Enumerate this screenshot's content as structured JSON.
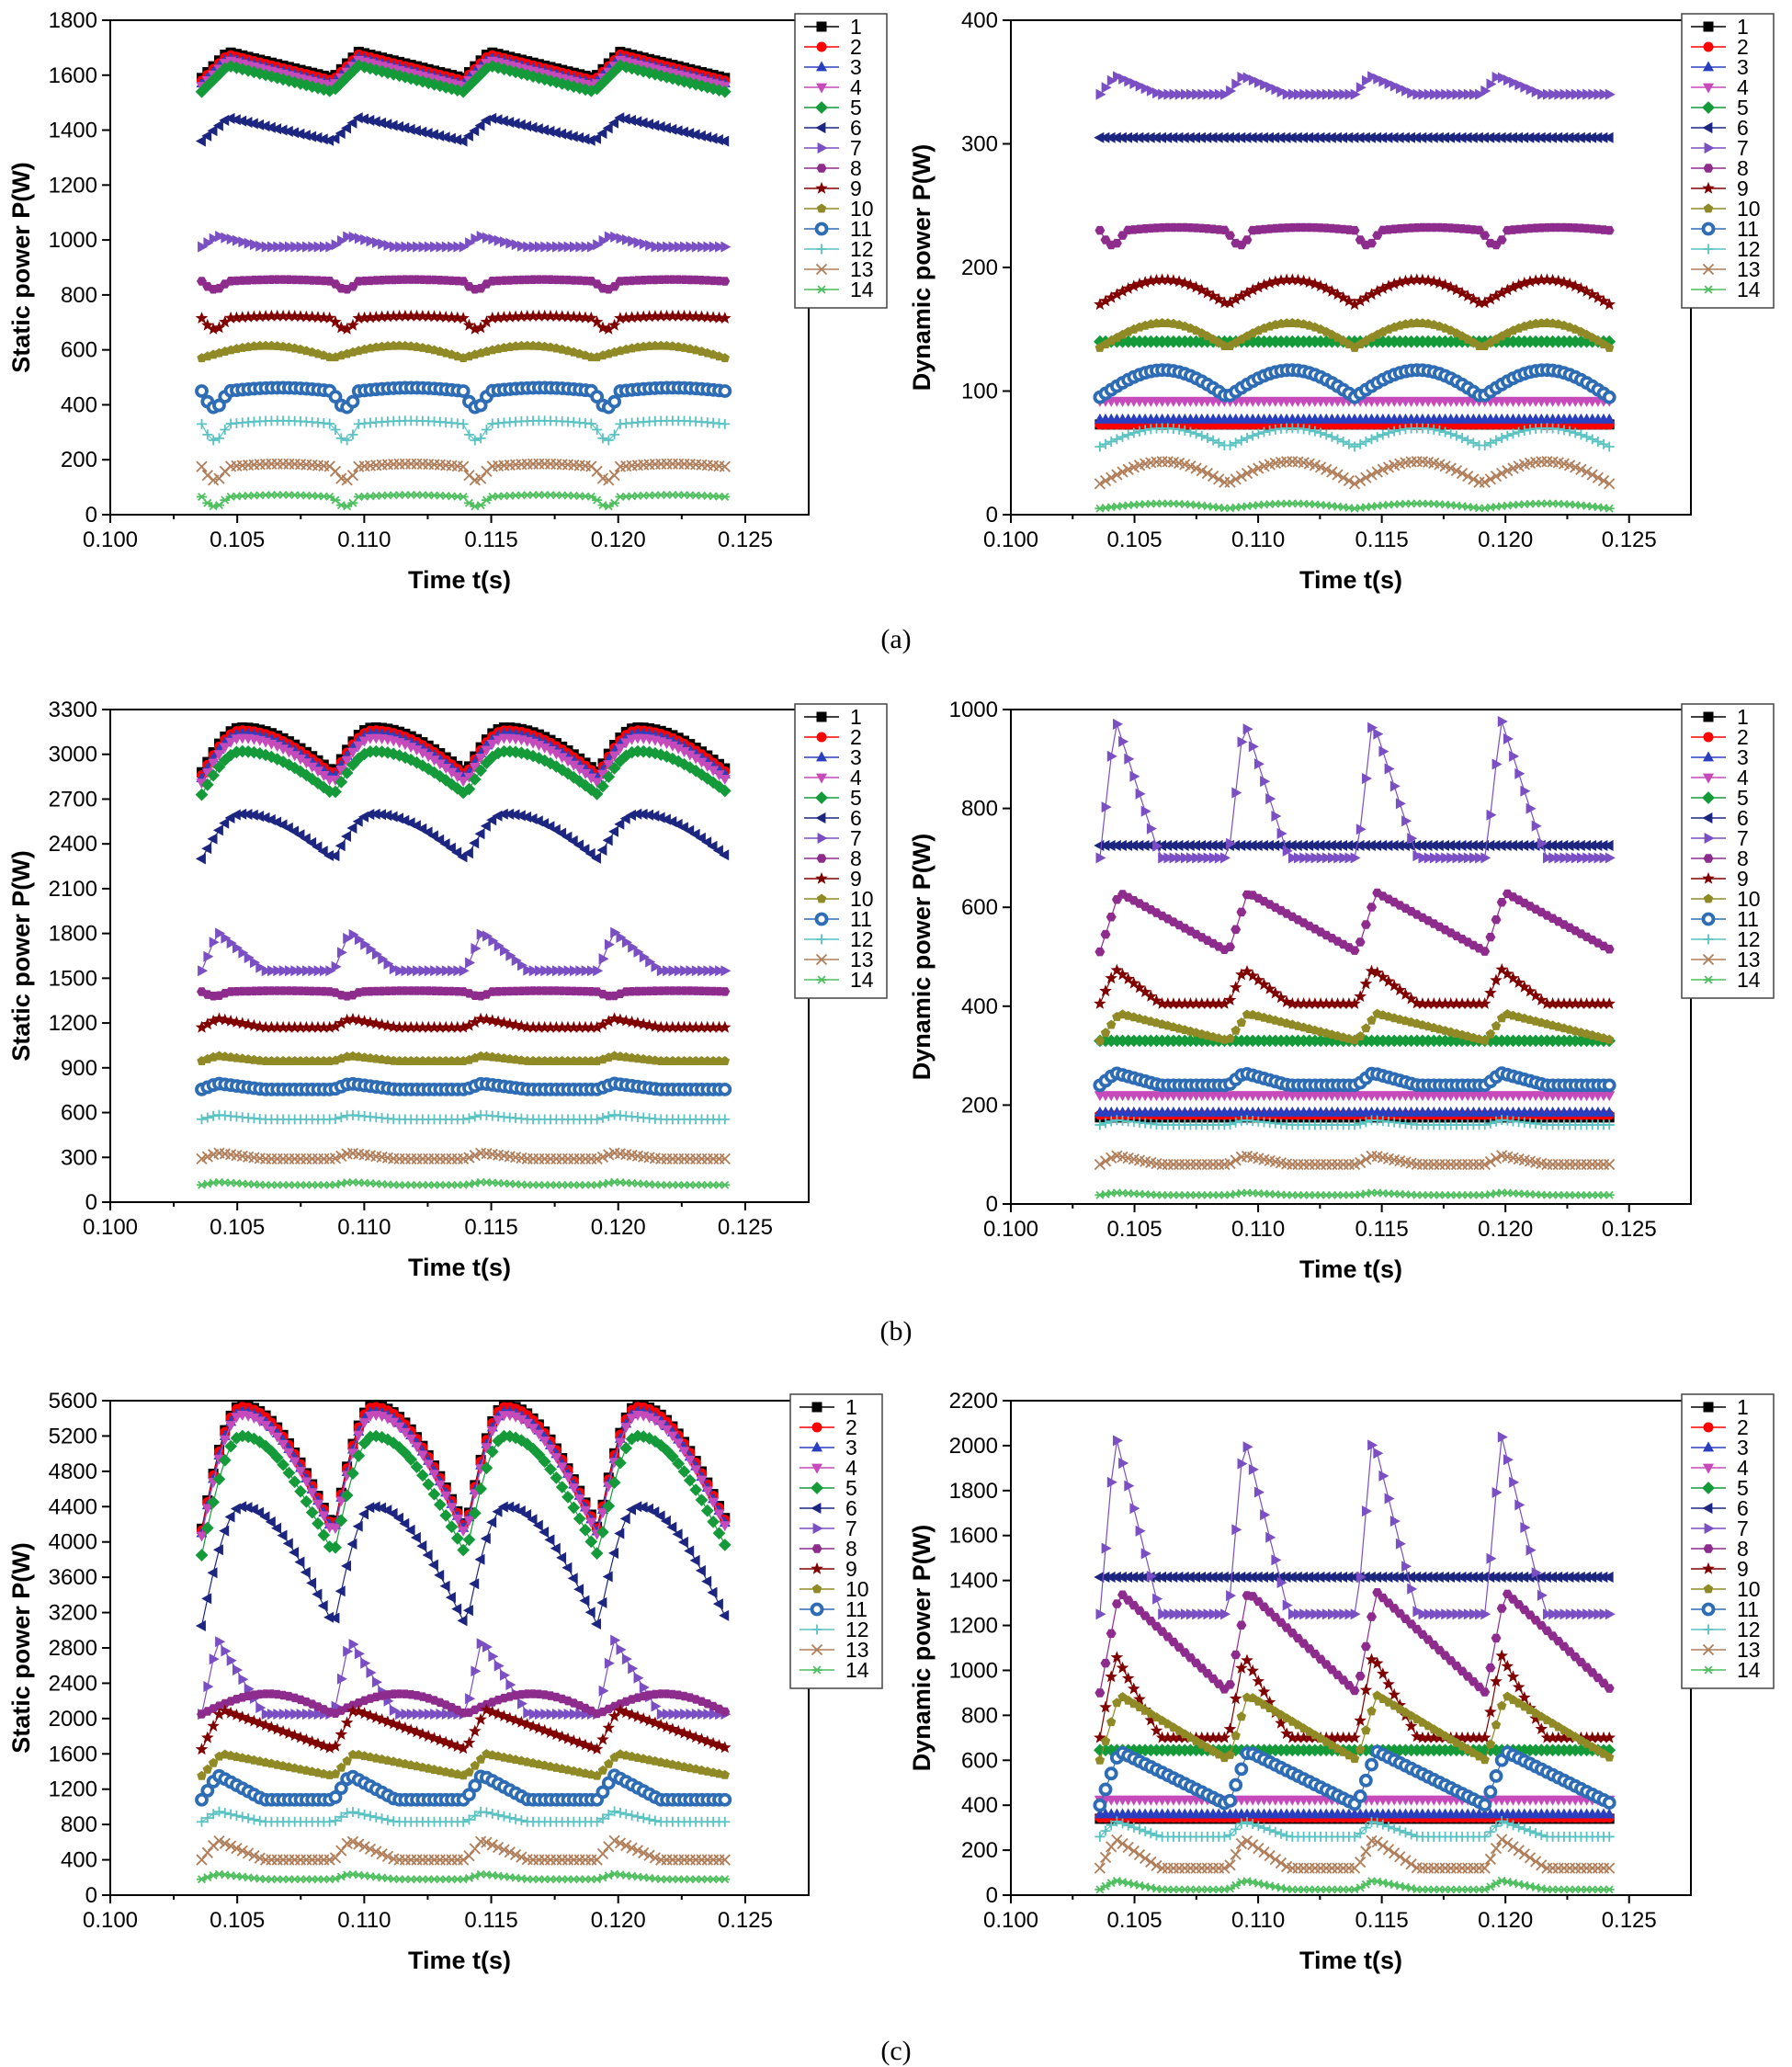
{
  "chart_data": [
    {
      "id": "a-static",
      "type": "line",
      "panel": "(a)",
      "xlabel": "Time t(s)",
      "ylabel": "Static power P(W)",
      "xlim": [
        0.1,
        0.1275
      ],
      "ylim": [
        0,
        1800
      ],
      "xticks": [
        "0.100",
        "0.105",
        "0.110",
        "0.115",
        "0.120",
        "0.125"
      ],
      "yticks": [
        0,
        200,
        400,
        600,
        800,
        1000,
        1200,
        1400,
        1600,
        1800
      ],
      "legend_position": "right",
      "t_start": 0.1036,
      "t_end": 0.1242,
      "period": 0.00515,
      "series": [
        {
          "name": "1",
          "base": 1590,
          "amp": 95,
          "shape": "saw"
        },
        {
          "name": "2",
          "base": 1580,
          "amp": 95,
          "shape": "saw"
        },
        {
          "name": "3",
          "base": 1570,
          "amp": 95,
          "shape": "saw"
        },
        {
          "name": "4",
          "base": 1560,
          "amp": 95,
          "shape": "saw"
        },
        {
          "name": "5",
          "base": 1540,
          "amp": 95,
          "shape": "saw"
        },
        {
          "name": "6",
          "base": 1360,
          "amp": 85,
          "shape": "saw"
        },
        {
          "name": "7",
          "base": 975,
          "amp": 40,
          "shape": "spike"
        },
        {
          "name": "8",
          "base": 850,
          "amp": 30,
          "shape": "dip"
        },
        {
          "name": "9",
          "base": 715,
          "amp": 40,
          "shape": "dip"
        },
        {
          "name": "10",
          "base": 570,
          "amp": 45,
          "shape": "arch"
        },
        {
          "name": "11",
          "base": 450,
          "amp": 60,
          "shape": "dip"
        },
        {
          "name": "12",
          "base": 330,
          "amp": 60,
          "shape": "dip"
        },
        {
          "name": "13",
          "base": 175,
          "amp": 50,
          "shape": "dip"
        },
        {
          "name": "14",
          "base": 65,
          "amp": 35,
          "shape": "dip"
        }
      ]
    },
    {
      "id": "a-dynamic",
      "type": "line",
      "panel": "(a)",
      "xlabel": "Time t(s)",
      "ylabel": "Dynamic power P(W)",
      "xlim": [
        0.1,
        0.1275
      ],
      "ylim": [
        0,
        400
      ],
      "xticks": [
        "0.100",
        "0.105",
        "0.110",
        "0.115",
        "0.120",
        "0.125"
      ],
      "yticks": [
        0,
        100,
        200,
        300,
        400
      ],
      "legend_position": "right",
      "t_start": 0.1036,
      "t_end": 0.1242,
      "period": 0.00515,
      "series": [
        {
          "name": "1",
          "base": 73,
          "amp": 0,
          "shape": "flat"
        },
        {
          "name": "2",
          "base": 73,
          "amp": 0,
          "shape": "flat"
        },
        {
          "name": "3",
          "base": 77,
          "amp": 0,
          "shape": "flat"
        },
        {
          "name": "4",
          "base": 92,
          "amp": 0,
          "shape": "flat"
        },
        {
          "name": "5",
          "base": 140,
          "amp": 0,
          "shape": "flat"
        },
        {
          "name": "6",
          "base": 305,
          "amp": 0,
          "shape": "flat"
        },
        {
          "name": "7",
          "base": 340,
          "amp": 15,
          "shape": "spike"
        },
        {
          "name": "8",
          "base": 230,
          "amp": 12,
          "shape": "dip"
        },
        {
          "name": "9",
          "base": 170,
          "amp": 20,
          "shape": "arch"
        },
        {
          "name": "10",
          "base": 135,
          "amp": 20,
          "shape": "arch"
        },
        {
          "name": "11",
          "base": 95,
          "amp": 22,
          "shape": "arch"
        },
        {
          "name": "12",
          "base": 55,
          "amp": 15,
          "shape": "arch"
        },
        {
          "name": "13",
          "base": 25,
          "amp": 18,
          "shape": "arch"
        },
        {
          "name": "14",
          "base": 5,
          "amp": 4,
          "shape": "arch"
        }
      ]
    },
    {
      "id": "b-static",
      "type": "line",
      "panel": "(b)",
      "xlabel": "Time t(s)",
      "ylabel": "Static power P(W)",
      "xlim": [
        0.1,
        0.1275
      ],
      "ylim": [
        0,
        3300
      ],
      "xticks": [
        "0.100",
        "0.105",
        "0.110",
        "0.115",
        "0.120",
        "0.125"
      ],
      "yticks": [
        0,
        300,
        600,
        900,
        1200,
        1500,
        1800,
        2100,
        2400,
        2700,
        3000,
        3300
      ],
      "legend_position": "right",
      "t_start": 0.1036,
      "t_end": 0.1242,
      "period": 0.0052,
      "series": [
        {
          "name": "1",
          "base": 2880,
          "amp": 300,
          "shape": "peak"
        },
        {
          "name": "2",
          "base": 2860,
          "amp": 300,
          "shape": "peak"
        },
        {
          "name": "3",
          "base": 2840,
          "amp": 300,
          "shape": "peak"
        },
        {
          "name": "4",
          "base": 2810,
          "amp": 300,
          "shape": "peak"
        },
        {
          "name": "5",
          "base": 2730,
          "amp": 290,
          "shape": "peak"
        },
        {
          "name": "6",
          "base": 2300,
          "amp": 300,
          "shape": "peak"
        },
        {
          "name": "7",
          "base": 1550,
          "amp": 260,
          "shape": "spike"
        },
        {
          "name": "8",
          "base": 1410,
          "amp": 30,
          "shape": "dip"
        },
        {
          "name": "9",
          "base": 1170,
          "amp": 60,
          "shape": "spike"
        },
        {
          "name": "10",
          "base": 945,
          "amp": 35,
          "shape": "spike"
        },
        {
          "name": "11",
          "base": 755,
          "amp": 40,
          "shape": "spike"
        },
        {
          "name": "12",
          "base": 555,
          "amp": 30,
          "shape": "spike"
        },
        {
          "name": "13",
          "base": 290,
          "amp": 40,
          "shape": "spike"
        },
        {
          "name": "14",
          "base": 115,
          "amp": 20,
          "shape": "spike"
        }
      ]
    },
    {
      "id": "b-dynamic",
      "type": "line",
      "panel": "(b)",
      "xlabel": "Time t(s)",
      "ylabel": "Dynamic power P(W)",
      "xlim": [
        0.1,
        0.1275
      ],
      "ylim": [
        0,
        1000
      ],
      "xticks": [
        "0.100",
        "0.105",
        "0.110",
        "0.115",
        "0.120",
        "0.125"
      ],
      "yticks": [
        0,
        200,
        400,
        600,
        800,
        1000
      ],
      "legend_position": "right",
      "t_start": 0.1036,
      "t_end": 0.1242,
      "period": 0.0052,
      "series": [
        {
          "name": "1",
          "base": 175,
          "amp": 0,
          "shape": "flat"
        },
        {
          "name": "2",
          "base": 180,
          "amp": 0,
          "shape": "flat"
        },
        {
          "name": "3",
          "base": 185,
          "amp": 0,
          "shape": "flat"
        },
        {
          "name": "4",
          "base": 220,
          "amp": 0,
          "shape": "flat"
        },
        {
          "name": "5",
          "base": 330,
          "amp": 0,
          "shape": "flat"
        },
        {
          "name": "6",
          "base": 725,
          "amp": 0,
          "shape": "flat"
        },
        {
          "name": "7",
          "base": 700,
          "amp": 280,
          "shape": "spike"
        },
        {
          "name": "8",
          "base": 510,
          "amp": 120,
          "shape": "ramp"
        },
        {
          "name": "9",
          "base": 405,
          "amp": 70,
          "shape": "spike"
        },
        {
          "name": "10",
          "base": 330,
          "amp": 55,
          "shape": "ramp"
        },
        {
          "name": "11",
          "base": 240,
          "amp": 25,
          "shape": "spike"
        },
        {
          "name": "12",
          "base": 160,
          "amp": 10,
          "shape": "spike"
        },
        {
          "name": "13",
          "base": 80,
          "amp": 18,
          "shape": "spike"
        },
        {
          "name": "14",
          "base": 18,
          "amp": 5,
          "shape": "spike"
        }
      ]
    },
    {
      "id": "c-static",
      "type": "line",
      "panel": "(c)",
      "xlabel": "Time t(s)",
      "ylabel": "Static power P(W)",
      "xlim": [
        0.1,
        0.1275
      ],
      "ylim": [
        0,
        5600
      ],
      "xticks": [
        "0.100",
        "0.105",
        "0.110",
        "0.115",
        "0.120",
        "0.125"
      ],
      "yticks": [
        0,
        400,
        800,
        1200,
        1600,
        2000,
        2400,
        2800,
        3200,
        3600,
        4000,
        4400,
        4800,
        5200,
        5600
      ],
      "legend_position": "right",
      "t_start": 0.1036,
      "t_end": 0.1242,
      "period": 0.0052,
      "series": [
        {
          "name": "1",
          "base": 4150,
          "amp": 1400,
          "shape": "peak"
        },
        {
          "name": "2",
          "base": 4130,
          "amp": 1400,
          "shape": "peak"
        },
        {
          "name": "3",
          "base": 4100,
          "amp": 1380,
          "shape": "peak"
        },
        {
          "name": "4",
          "base": 4070,
          "amp": 1370,
          "shape": "peak"
        },
        {
          "name": "5",
          "base": 3850,
          "amp": 1350,
          "shape": "peak"
        },
        {
          "name": "6",
          "base": 3050,
          "amp": 1350,
          "shape": "peak"
        },
        {
          "name": "7",
          "base": 2050,
          "amp": 850,
          "shape": "spike"
        },
        {
          "name": "8",
          "base": 2050,
          "amp": 230,
          "shape": "arch"
        },
        {
          "name": "9",
          "base": 1650,
          "amp": 450,
          "shape": "ramp"
        },
        {
          "name": "10",
          "base": 1350,
          "amp": 250,
          "shape": "ramp"
        },
        {
          "name": "11",
          "base": 1080,
          "amp": 280,
          "shape": "spike"
        },
        {
          "name": "12",
          "base": 830,
          "amp": 120,
          "shape": "spike"
        },
        {
          "name": "13",
          "base": 400,
          "amp": 220,
          "shape": "spike"
        },
        {
          "name": "14",
          "base": 180,
          "amp": 60,
          "shape": "spike"
        }
      ]
    },
    {
      "id": "c-dynamic",
      "type": "line",
      "panel": "(c)",
      "xlabel": "Time t(s)",
      "ylabel": "Dynamic power P(W)",
      "xlim": [
        0.1,
        0.1275
      ],
      "ylim": [
        0,
        2200
      ],
      "xticks": [
        "0.100",
        "0.105",
        "0.110",
        "0.115",
        "0.120",
        "0.125"
      ],
      "yticks": [
        0,
        200,
        400,
        600,
        800,
        1000,
        1200,
        1400,
        1600,
        1800,
        2000,
        2200
      ],
      "legend_position": "right",
      "t_start": 0.1036,
      "t_end": 0.1242,
      "period": 0.0052,
      "series": [
        {
          "name": "1",
          "base": 340,
          "amp": 0,
          "shape": "flat"
        },
        {
          "name": "2",
          "base": 345,
          "amp": 0,
          "shape": "flat"
        },
        {
          "name": "3",
          "base": 360,
          "amp": 0,
          "shape": "flat"
        },
        {
          "name": "4",
          "base": 425,
          "amp": 0,
          "shape": "flat"
        },
        {
          "name": "5",
          "base": 645,
          "amp": 0,
          "shape": "flat"
        },
        {
          "name": "6",
          "base": 1415,
          "amp": 0,
          "shape": "flat"
        },
        {
          "name": "7",
          "base": 1250,
          "amp": 800,
          "shape": "spike"
        },
        {
          "name": "8",
          "base": 900,
          "amp": 450,
          "shape": "ramp"
        },
        {
          "name": "9",
          "base": 700,
          "amp": 370,
          "shape": "spike"
        },
        {
          "name": "10",
          "base": 600,
          "amp": 290,
          "shape": "ramp"
        },
        {
          "name": "11",
          "base": 400,
          "amp": 240,
          "shape": "ramp"
        },
        {
          "name": "12",
          "base": 260,
          "amp": 70,
          "shape": "spike"
        },
        {
          "name": "13",
          "base": 120,
          "amp": 130,
          "shape": "spike"
        },
        {
          "name": "14",
          "base": 25,
          "amp": 40,
          "shape": "spike"
        }
      ]
    }
  ],
  "legend_entries": [
    "1",
    "2",
    "3",
    "4",
    "5",
    "6",
    "7",
    "8",
    "9",
    "10",
    "11",
    "12",
    "13",
    "14"
  ],
  "series_styles": [
    {
      "color": "#000000",
      "marker": "square"
    },
    {
      "color": "#ff0000",
      "marker": "circle"
    },
    {
      "color": "#2a3fbf",
      "marker": "triangle-up"
    },
    {
      "color": "#c64aba",
      "marker": "triangle-down"
    },
    {
      "color": "#159a3a",
      "marker": "diamond"
    },
    {
      "color": "#1c2680",
      "marker": "triangle-left"
    },
    {
      "color": "#7b4fc4",
      "marker": "triangle-right"
    },
    {
      "color": "#8e2c8e",
      "marker": "hexagon"
    },
    {
      "color": "#800000",
      "marker": "star"
    },
    {
      "color": "#8f8a25",
      "marker": "pentagon"
    },
    {
      "color": "#2e6db5",
      "marker": "ring"
    },
    {
      "color": "#5bc2c2",
      "marker": "plus"
    },
    {
      "color": "#b07e5a",
      "marker": "x"
    },
    {
      "color": "#4fbf5f",
      "marker": "asterisk"
    }
  ],
  "captions": [
    "(a)",
    "(b)",
    "(c)"
  ]
}
